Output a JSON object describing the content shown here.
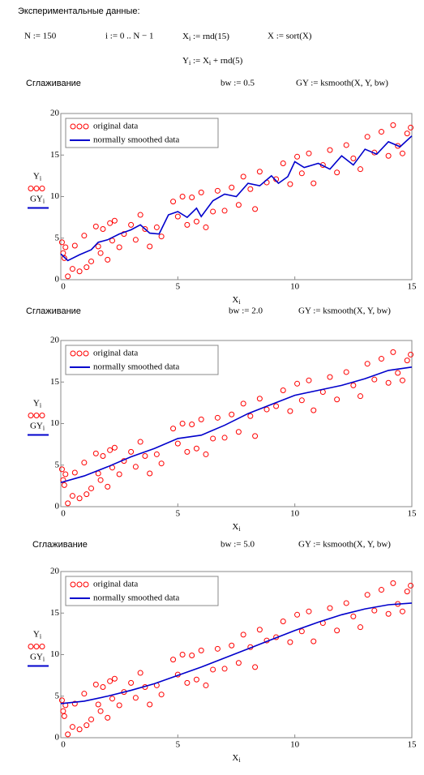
{
  "worksheet": {
    "title": "Экспериментальные данные:",
    "n_def": "N := 150",
    "i_def": "i := 0 .. N − 1",
    "x_def": [
      "X",
      "i",
      " := rnd(15)"
    ],
    "sort_def": "X := sort(X)",
    "y_def": [
      "Y",
      "i",
      " := X",
      "i",
      " + rnd(5)"
    ],
    "sections": [
      {
        "heading": "Сглаживание",
        "bw_def": "bw := 0.5",
        "gy_def": "GY := ksmooth(X, Y, bw)"
      },
      {
        "heading": "Сглаживание",
        "bw_def": "bw := 2.0",
        "gy_def": "GY := ksmooth(X, Y, bw)"
      },
      {
        "heading": "Сглаживание",
        "bw_def": "bw := 5.0",
        "gy_def": "GY := ksmooth(X, Y, bw)"
      }
    ]
  },
  "chart_data": [
    {
      "type": "scatter",
      "ylabels": [
        [
          "Y",
          "i"
        ],
        [
          "GY",
          "i"
        ]
      ],
      "xlabel": [
        "X",
        "i"
      ],
      "xlim": [
        0,
        15
      ],
      "ylim": [
        0,
        20
      ],
      "xticks": [
        0,
        5,
        10,
        15
      ],
      "yticks": [
        0,
        5,
        10,
        15,
        20
      ],
      "legend": "top-left",
      "series": [
        {
          "name": "original data",
          "color": "#ff0000",
          "mode": "markers",
          "x": [
            0.05,
            0.1,
            0.15,
            0.2,
            0.3,
            0.5,
            0.6,
            0.8,
            1.0,
            1.1,
            1.3,
            1.5,
            1.6,
            1.7,
            1.8,
            2.0,
            2.1,
            2.2,
            2.3,
            2.5,
            2.7,
            3.0,
            3.2,
            3.4,
            3.6,
            3.8,
            4.1,
            4.3,
            4.8,
            5.0,
            5.2,
            5.4,
            5.6,
            5.8,
            6.0,
            6.2,
            6.5,
            6.7,
            7.0,
            7.3,
            7.6,
            7.8,
            8.1,
            8.3,
            8.5,
            8.8,
            9.2,
            9.5,
            9.8,
            10.1,
            10.3,
            10.6,
            10.8,
            11.2,
            11.5,
            11.8,
            12.2,
            12.5,
            12.8,
            13.1,
            13.4,
            13.7,
            14.0,
            14.2,
            14.4,
            14.6,
            14.8,
            14.95
          ],
          "values": [
            4.5,
            3.2,
            2.6,
            3.9,
            0.4,
            1.3,
            4.1,
            1.0,
            5.3,
            1.5,
            2.2,
            6.4,
            4.0,
            3.2,
            6.1,
            2.4,
            6.8,
            4.7,
            7.1,
            3.9,
            5.5,
            6.6,
            4.8,
            7.8,
            6.1,
            4.0,
            6.3,
            5.2,
            9.4,
            7.6,
            10.0,
            6.6,
            9.9,
            7.0,
            10.5,
            6.3,
            8.2,
            10.7,
            8.3,
            11.1,
            9.0,
            12.4,
            10.9,
            8.5,
            13.0,
            11.7,
            12.1,
            14.0,
            11.5,
            14.8,
            12.8,
            15.2,
            11.6,
            13.8,
            15.6,
            12.9,
            16.2,
            14.6,
            13.3,
            17.2,
            15.3,
            17.8,
            14.9,
            18.6,
            16.1,
            15.2,
            17.6,
            18.3
          ]
        },
        {
          "name": "normally smoothed data",
          "color": "#0000cc",
          "mode": "lines",
          "x": [
            0,
            0.3,
            0.8,
            1.3,
            1.6,
            2.0,
            2.5,
            3.0,
            3.4,
            3.8,
            4.2,
            4.6,
            5.0,
            5.4,
            5.8,
            6.0,
            6.5,
            7.0,
            7.5,
            8.0,
            8.5,
            9.0,
            9.3,
            9.7,
            10.0,
            10.4,
            11.0,
            11.5,
            12.0,
            12.5,
            13.0,
            13.5,
            14.0,
            14.5,
            15
          ],
          "values": [
            3.1,
            2.3,
            3.0,
            3.6,
            4.5,
            4.8,
            5.5,
            6.0,
            6.6,
            5.6,
            5.5,
            7.8,
            8.2,
            7.5,
            8.6,
            7.6,
            9.5,
            10.3,
            10.0,
            11.6,
            11.3,
            12.5,
            11.6,
            12.4,
            14.2,
            13.5,
            14.0,
            13.3,
            14.9,
            13.8,
            15.7,
            15.1,
            16.6,
            16.0,
            17.3
          ]
        }
      ]
    },
    {
      "type": "scatter",
      "ylabels": [
        [
          "Y",
          "i"
        ],
        [
          "GY",
          "i"
        ]
      ],
      "xlabel": [
        "X",
        "i"
      ],
      "xlim": [
        0,
        15
      ],
      "ylim": [
        0,
        20
      ],
      "xticks": [
        0,
        5,
        10,
        15
      ],
      "yticks": [
        0,
        5,
        10,
        15,
        20
      ],
      "legend": "top-left",
      "series": [
        {
          "name": "original data",
          "color": "#ff0000",
          "mode": "markers",
          "x": [
            0.05,
            0.1,
            0.15,
            0.2,
            0.3,
            0.5,
            0.6,
            0.8,
            1.0,
            1.1,
            1.3,
            1.5,
            1.6,
            1.7,
            1.8,
            2.0,
            2.1,
            2.2,
            2.3,
            2.5,
            2.7,
            3.0,
            3.2,
            3.4,
            3.6,
            3.8,
            4.1,
            4.3,
            4.8,
            5.0,
            5.2,
            5.4,
            5.6,
            5.8,
            6.0,
            6.2,
            6.5,
            6.7,
            7.0,
            7.3,
            7.6,
            7.8,
            8.1,
            8.3,
            8.5,
            8.8,
            9.2,
            9.5,
            9.8,
            10.1,
            10.3,
            10.6,
            10.8,
            11.2,
            11.5,
            11.8,
            12.2,
            12.5,
            12.8,
            13.1,
            13.4,
            13.7,
            14.0,
            14.2,
            14.4,
            14.6,
            14.8,
            14.95
          ],
          "values": [
            4.5,
            3.2,
            2.6,
            3.9,
            0.4,
            1.3,
            4.1,
            1.0,
            5.3,
            1.5,
            2.2,
            6.4,
            4.0,
            3.2,
            6.1,
            2.4,
            6.8,
            4.7,
            7.1,
            3.9,
            5.5,
            6.6,
            4.8,
            7.8,
            6.1,
            4.0,
            6.3,
            5.2,
            9.4,
            7.6,
            10.0,
            6.6,
            9.9,
            7.0,
            10.5,
            6.3,
            8.2,
            10.7,
            8.3,
            11.1,
            9.0,
            12.4,
            10.9,
            8.5,
            13.0,
            11.7,
            12.1,
            14.0,
            11.5,
            14.8,
            12.8,
            15.2,
            11.6,
            13.8,
            15.6,
            12.9,
            16.2,
            14.6,
            13.3,
            17.2,
            15.3,
            17.8,
            14.9,
            18.6,
            16.1,
            15.2,
            17.6,
            18.3
          ]
        },
        {
          "name": "normally smoothed data",
          "color": "#0000cc",
          "mode": "lines",
          "x": [
            0,
            1,
            2,
            3,
            4,
            5,
            6,
            7,
            8,
            9,
            10,
            11,
            12,
            13,
            14,
            15
          ],
          "values": [
            2.9,
            3.7,
            4.8,
            6.0,
            7.0,
            8.2,
            8.6,
            9.8,
            11.2,
            12.3,
            13.4,
            14.0,
            14.6,
            15.4,
            16.4,
            16.8
          ]
        }
      ]
    },
    {
      "type": "scatter",
      "ylabels": [
        [
          "Y",
          "i"
        ],
        [
          "GY",
          "i"
        ]
      ],
      "xlabel": [
        "X",
        "i"
      ],
      "xlim": [
        0,
        15
      ],
      "ylim": [
        0,
        20
      ],
      "xticks": [
        0,
        5,
        10,
        15
      ],
      "yticks": [
        0,
        5,
        10,
        15,
        20
      ],
      "legend": "top-left",
      "series": [
        {
          "name": "original data",
          "color": "#ff0000",
          "mode": "markers",
          "x": [
            0.05,
            0.1,
            0.15,
            0.2,
            0.3,
            0.5,
            0.6,
            0.8,
            1.0,
            1.1,
            1.3,
            1.5,
            1.6,
            1.7,
            1.8,
            2.0,
            2.1,
            2.2,
            2.3,
            2.5,
            2.7,
            3.0,
            3.2,
            3.4,
            3.6,
            3.8,
            4.1,
            4.3,
            4.8,
            5.0,
            5.2,
            5.4,
            5.6,
            5.8,
            6.0,
            6.2,
            6.5,
            6.7,
            7.0,
            7.3,
            7.6,
            7.8,
            8.1,
            8.3,
            8.5,
            8.8,
            9.2,
            9.5,
            9.8,
            10.1,
            10.3,
            10.6,
            10.8,
            11.2,
            11.5,
            11.8,
            12.2,
            12.5,
            12.8,
            13.1,
            13.4,
            13.7,
            14.0,
            14.2,
            14.4,
            14.6,
            14.8,
            14.95
          ],
          "values": [
            4.5,
            3.2,
            2.6,
            3.9,
            0.4,
            1.3,
            4.1,
            1.0,
            5.3,
            1.5,
            2.2,
            6.4,
            4.0,
            3.2,
            6.1,
            2.4,
            6.8,
            4.7,
            7.1,
            3.9,
            5.5,
            6.6,
            4.8,
            7.8,
            6.1,
            4.0,
            6.3,
            5.2,
            9.4,
            7.6,
            10.0,
            6.6,
            9.9,
            7.0,
            10.5,
            6.3,
            8.2,
            10.7,
            8.3,
            11.1,
            9.0,
            12.4,
            10.9,
            8.5,
            13.0,
            11.7,
            12.1,
            14.0,
            11.5,
            14.8,
            12.8,
            15.2,
            11.6,
            13.8,
            15.6,
            12.9,
            16.2,
            14.6,
            13.3,
            17.2,
            15.3,
            17.8,
            14.9,
            18.6,
            16.1,
            15.2,
            17.6,
            18.3
          ]
        },
        {
          "name": "normally smoothed data",
          "color": "#0000cc",
          "mode": "lines",
          "x": [
            0,
            1,
            2,
            3,
            4,
            5,
            6,
            7,
            8,
            9,
            10,
            11,
            12,
            13,
            14,
            15
          ],
          "values": [
            4.1,
            4.4,
            5.0,
            5.7,
            6.5,
            7.5,
            8.5,
            9.6,
            10.7,
            11.8,
            12.9,
            13.9,
            14.8,
            15.5,
            16.0,
            16.2
          ]
        }
      ]
    }
  ]
}
